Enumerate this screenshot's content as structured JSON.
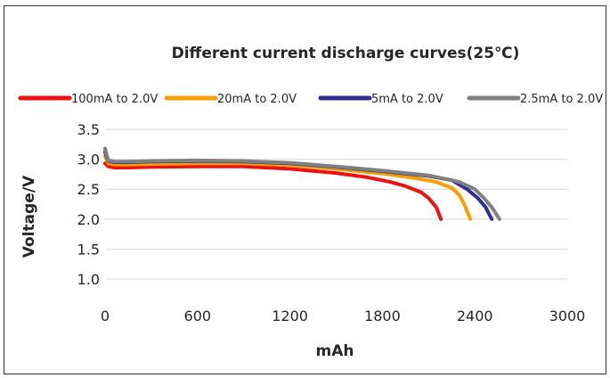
{
  "chart_data": {
    "type": "line",
    "title": "Different current discharge curves(25℃)",
    "xlabel": "mAh",
    "ylabel": "Voltage/V",
    "xlim": [
      0,
      3000
    ],
    "ylim": [
      1.0,
      3.5
    ],
    "xticks": [
      "0",
      "600",
      "1200",
      "1800",
      "2400",
      "3000"
    ],
    "xtick_values": [
      0,
      600,
      1200,
      1800,
      2400,
      3000
    ],
    "yticks": [
      "1.0",
      "1.5",
      "2.0",
      "2.5",
      "3.0",
      "3.5"
    ],
    "ytick_values": [
      1.0,
      1.5,
      2.0,
      2.5,
      3.0,
      3.5
    ],
    "grid": "horizontal",
    "legend_position": "top",
    "series": [
      {
        "name": "100mA to 2.0V",
        "color": "#ee1111",
        "x": [
          0,
          20,
          60,
          150,
          300,
          600,
          900,
          1200,
          1500,
          1700,
          1850,
          1950,
          2050,
          2100,
          2150,
          2180
        ],
        "y": [
          2.93,
          2.88,
          2.86,
          2.86,
          2.87,
          2.88,
          2.88,
          2.84,
          2.77,
          2.7,
          2.62,
          2.55,
          2.45,
          2.35,
          2.2,
          2.0
        ]
      },
      {
        "name": "20mA to 2.0V",
        "color": "#f5a000",
        "x": [
          0,
          20,
          60,
          150,
          300,
          600,
          900,
          1200,
          1500,
          1800,
          2000,
          2150,
          2250,
          2300,
          2340,
          2370
        ],
        "y": [
          3.05,
          2.93,
          2.91,
          2.91,
          2.92,
          2.93,
          2.93,
          2.9,
          2.84,
          2.76,
          2.69,
          2.62,
          2.52,
          2.4,
          2.2,
          2.0
        ]
      },
      {
        "name": "5mA to 2.0V",
        "color": "#2e3192",
        "x": [
          0,
          20,
          60,
          150,
          300,
          600,
          900,
          1200,
          1500,
          1800,
          2100,
          2250,
          2350,
          2420,
          2470,
          2510
        ],
        "y": [
          3.12,
          2.97,
          2.95,
          2.95,
          2.96,
          2.97,
          2.96,
          2.93,
          2.87,
          2.8,
          2.72,
          2.65,
          2.5,
          2.35,
          2.2,
          2.0
        ]
      },
      {
        "name": "2.5mA to 2.0V",
        "color": "#808080",
        "x": [
          0,
          20,
          60,
          150,
          300,
          600,
          900,
          1200,
          1500,
          1800,
          2100,
          2300,
          2400,
          2460,
          2510,
          2560
        ],
        "y": [
          3.18,
          2.98,
          2.96,
          2.96,
          2.97,
          2.98,
          2.97,
          2.94,
          2.88,
          2.81,
          2.73,
          2.62,
          2.5,
          2.35,
          2.2,
          2.0
        ]
      }
    ]
  }
}
